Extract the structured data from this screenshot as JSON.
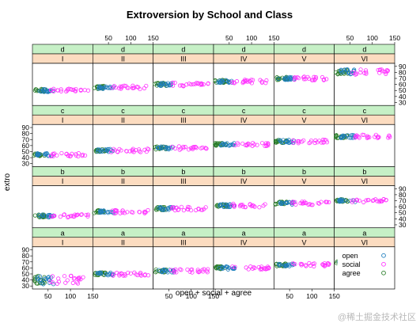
{
  "chart_data": {
    "type": "scatter",
    "title": "Extroversion by School and Class",
    "xlabel": "open + social + agree",
    "ylabel": "extro",
    "xlim": [
      15,
      150
    ],
    "ylim": [
      25,
      95
    ],
    "x_ticks": [
      "50",
      "100",
      "150"
    ],
    "y_ticks": [
      "30",
      "40",
      "50",
      "60",
      "70",
      "80",
      "90"
    ],
    "bottom_tick_labels": [
      [
        "50",
        "100",
        "150"
      ],
      [],
      [
        "50",
        "100",
        "150"
      ],
      [],
      [
        "50",
        "100",
        "150"
      ],
      []
    ],
    "top_tick_labels": [
      [],
      [
        "50",
        "100",
        "150"
      ],
      [],
      [
        "50",
        "100",
        "150"
      ],
      [],
      [
        "50",
        "100",
        "150"
      ]
    ],
    "right_tick_rows": [
      0,
      2
    ],
    "left_tick_rows": [
      1,
      3
    ],
    "schools": [
      "d",
      "c",
      "b",
      "a"
    ],
    "classes": [
      "I",
      "II",
      "III",
      "IV",
      "V",
      "VI"
    ],
    "colors": {
      "strip_school": "#c6f0c6",
      "strip_class": "#fcdcc0",
      "open": "#1f7fbf",
      "social": "#ff33ff",
      "agree": "#2a7d2a"
    },
    "legend": {
      "position": "bottom-right panel",
      "items": [
        {
          "name": "open",
          "color": "#1f7fbf"
        },
        {
          "name": "social",
          "color": "#ff33ff"
        },
        {
          "name": "agree",
          "color": "#2a7d2a"
        }
      ]
    },
    "series_groups": {
      "open": {
        "x_range": [
          25,
          62
        ],
        "y_spread": 2.5
      },
      "social": {
        "x_range": [
          55,
          140
        ],
        "y_spread": 3
      },
      "agree": {
        "x_range": [
          18,
          45
        ],
        "y_spread": 2.5
      }
    },
    "panels": [
      {
        "school": "d",
        "class": "I",
        "y_center": 50
      },
      {
        "school": "d",
        "class": "II",
        "y_center": 55
      },
      {
        "school": "d",
        "class": "III",
        "y_center": 60
      },
      {
        "school": "d",
        "class": "IV",
        "y_center": 65
      },
      {
        "school": "d",
        "class": "V",
        "y_center": 70
      },
      {
        "school": "d",
        "class": "VI",
        "y_center": 80
      },
      {
        "school": "c",
        "class": "I",
        "y_center": 45
      },
      {
        "school": "c",
        "class": "II",
        "y_center": 52
      },
      {
        "school": "c",
        "class": "III",
        "y_center": 56
      },
      {
        "school": "c",
        "class": "IV",
        "y_center": 62
      },
      {
        "school": "c",
        "class": "V",
        "y_center": 67
      },
      {
        "school": "c",
        "class": "VI",
        "y_center": 75
      },
      {
        "school": "b",
        "class": "I",
        "y_center": 45
      },
      {
        "school": "b",
        "class": "II",
        "y_center": 52
      },
      {
        "school": "b",
        "class": "III",
        "y_center": 57
      },
      {
        "school": "b",
        "class": "IV",
        "y_center": 62
      },
      {
        "school": "b",
        "class": "V",
        "y_center": 66
      },
      {
        "school": "b",
        "class": "VI",
        "y_center": 70
      },
      {
        "school": "a",
        "class": "I",
        "y_center": 40
      },
      {
        "school": "a",
        "class": "II",
        "y_center": 50
      },
      {
        "school": "a",
        "class": "III",
        "y_center": 55
      },
      {
        "school": "a",
        "class": "IV",
        "y_center": 60
      },
      {
        "school": "a",
        "class": "V",
        "y_center": 65
      },
      {
        "school": "a",
        "class": "VI",
        "y_center": 70
      }
    ]
  },
  "watermark": "@稀土掘金技术社区"
}
